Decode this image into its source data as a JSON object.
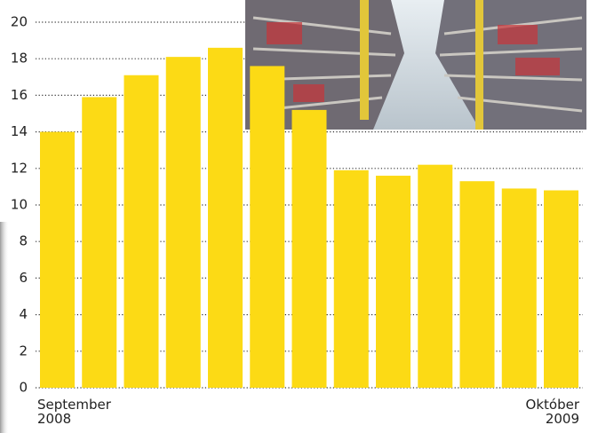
{
  "chart_data": {
    "type": "bar",
    "categories": [
      "September 2008",
      null,
      null,
      null,
      null,
      null,
      null,
      null,
      null,
      null,
      null,
      null,
      "Október 2009"
    ],
    "values": [
      14.0,
      15.9,
      17.1,
      18.1,
      18.6,
      17.6,
      15.2,
      11.9,
      11.6,
      12.2,
      11.3,
      10.9,
      10.8
    ],
    "color": "#fcda15",
    "ylim": [
      0,
      20
    ],
    "yticks": [
      0,
      2,
      4,
      6,
      8,
      10,
      12,
      14,
      16,
      18,
      20
    ],
    "grid": true
  }
}
